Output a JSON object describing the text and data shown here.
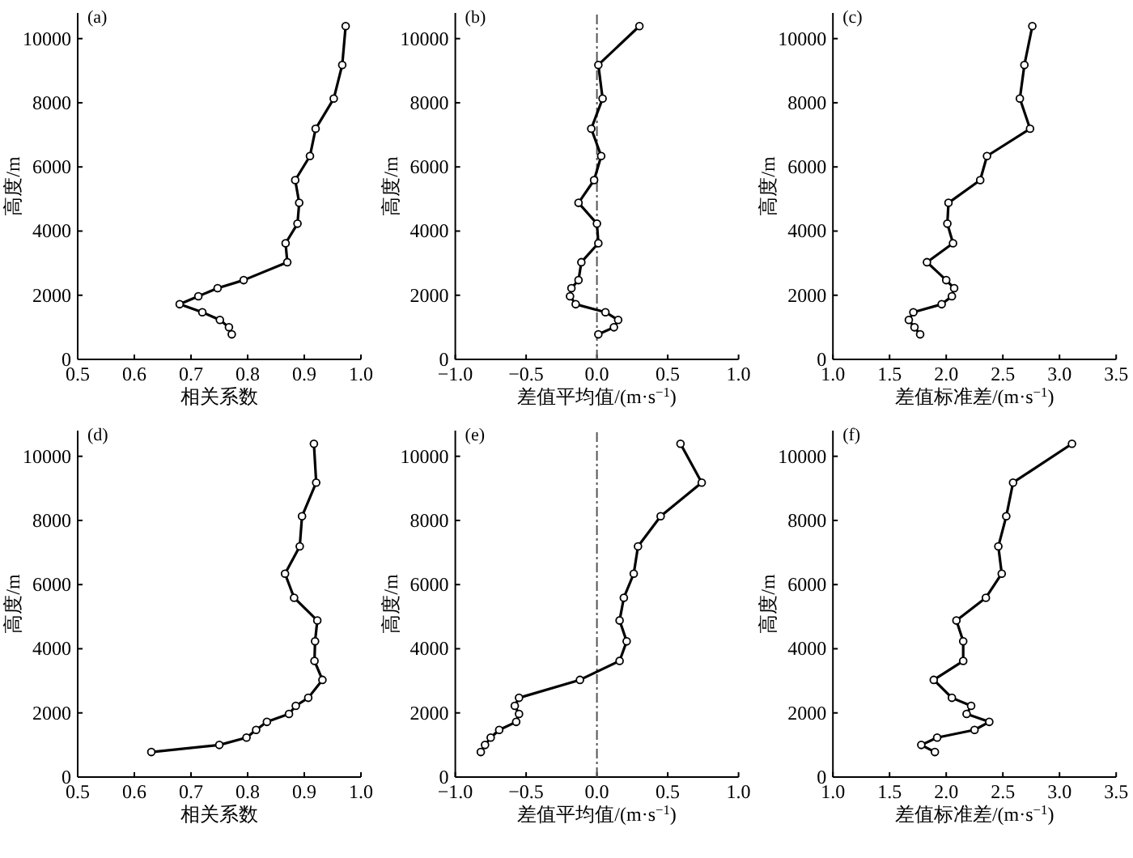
{
  "chart_data": [
    {
      "type": "line",
      "title": "(a)",
      "xlabel": "相关系数",
      "ylabel": "高度/m",
      "marker": "circle",
      "line_style": "solid",
      "xlim": [
        0.5,
        1.0
      ],
      "xticks": [
        {
          "value": 0.5,
          "label": "0.5"
        },
        {
          "value": 0.6,
          "label": "0.6"
        },
        {
          "value": 0.7,
          "label": "0.7"
        },
        {
          "value": 0.8,
          "label": "0.8"
        },
        {
          "value": 0.9,
          "label": "0.9"
        },
        {
          "value": 1.0,
          "label": "1.0"
        }
      ],
      "ylim": [
        0,
        10800
      ],
      "yticks": [
        0,
        2000,
        4000,
        6000,
        8000,
        10000
      ],
      "series": [
        {
          "color": "#000000",
          "x": [
            0.772,
            0.767,
            0.751,
            0.72,
            0.68,
            0.713,
            0.747,
            0.793,
            0.87,
            0.867,
            0.888,
            0.891,
            0.884,
            0.91,
            0.92,
            0.952,
            0.967,
            0.973
          ],
          "values": [
            780,
            1000,
            1230,
            1470,
            1720,
            1970,
            2220,
            2470,
            3030,
            3620,
            4230,
            4880,
            5590,
            6340,
            7190,
            8130,
            9180,
            10390
          ]
        }
      ]
    },
    {
      "type": "line",
      "title": "(b)",
      "xlabel": "差值平均值/(m·s$^{−1}$)",
      "ylabel": "高度/m",
      "marker": "circle",
      "line_style": "solid",
      "xlim": [
        -1.0,
        1.0
      ],
      "xticks": [
        {
          "value": -1.0,
          "label": "−1.0"
        },
        {
          "value": -0.5,
          "label": "−0.5"
        },
        {
          "value": 0.0,
          "label": "0.0"
        },
        {
          "value": 0.5,
          "label": "0.5"
        },
        {
          "value": 1.0,
          "label": "1.0"
        }
      ],
      "ylim": [
        0,
        10800
      ],
      "yticks": [
        0,
        2000,
        4000,
        6000,
        8000,
        10000
      ],
      "ref_lines": [
        {
          "axis": "x",
          "value": 0,
          "color": "#555555",
          "line_style": "dashdot"
        }
      ],
      "series": [
        {
          "color": "#000000",
          "x": [
            0.01,
            0.12,
            0.15,
            0.06,
            -0.15,
            -0.19,
            -0.18,
            -0.13,
            -0.11,
            0.01,
            0.0,
            -0.13,
            -0.02,
            0.03,
            -0.04,
            0.04,
            0.01,
            0.3
          ],
          "values": [
            780,
            1000,
            1230,
            1470,
            1720,
            1970,
            2220,
            2470,
            3030,
            3620,
            4230,
            4880,
            5590,
            6340,
            7190,
            8130,
            9180,
            10390
          ]
        }
      ]
    },
    {
      "type": "line",
      "title": "(c)",
      "xlabel": "差值标准差/(m·s$^{−1}$)",
      "ylabel": "高度/m",
      "marker": "circle",
      "line_style": "solid",
      "xlim": [
        1.0,
        3.5
      ],
      "xticks": [
        {
          "value": 1.0,
          "label": "1.0"
        },
        {
          "value": 1.5,
          "label": "1.5"
        },
        {
          "value": 2.0,
          "label": "2.0"
        },
        {
          "value": 2.5,
          "label": "2.5"
        },
        {
          "value": 3.0,
          "label": "3.0"
        },
        {
          "value": 3.5,
          "label": "3.5"
        }
      ],
      "ylim": [
        0,
        10800
      ],
      "yticks": [
        0,
        2000,
        4000,
        6000,
        8000,
        10000
      ],
      "series": [
        {
          "color": "#000000",
          "x": [
            1.77,
            1.72,
            1.67,
            1.71,
            1.96,
            2.05,
            2.07,
            2.0,
            1.83,
            2.06,
            2.01,
            2.02,
            2.3,
            2.36,
            2.74,
            2.65,
            2.69,
            2.76
          ],
          "values": [
            780,
            1000,
            1230,
            1470,
            1720,
            1970,
            2220,
            2470,
            3030,
            3620,
            4230,
            4880,
            5590,
            6340,
            7190,
            8130,
            9180,
            10390
          ]
        }
      ]
    },
    {
      "type": "line",
      "title": "(d)",
      "xlabel": "相关系数",
      "ylabel": "高度/m",
      "marker": "circle",
      "line_style": "solid",
      "xlim": [
        0.5,
        1.0
      ],
      "xticks": [
        {
          "value": 0.5,
          "label": "0.5"
        },
        {
          "value": 0.6,
          "label": "0.6"
        },
        {
          "value": 0.7,
          "label": "0.7"
        },
        {
          "value": 0.8,
          "label": "0.8"
        },
        {
          "value": 0.9,
          "label": "0.9"
        },
        {
          "value": 1.0,
          "label": "1.0"
        }
      ],
      "ylim": [
        0,
        10800
      ],
      "yticks": [
        0,
        2000,
        4000,
        6000,
        8000,
        10000
      ],
      "series": [
        {
          "color": "#000000",
          "x": [
            0.63,
            0.75,
            0.798,
            0.815,
            0.834,
            0.873,
            0.885,
            0.907,
            0.932,
            0.918,
            0.919,
            0.923,
            0.882,
            0.866,
            0.892,
            0.896,
            0.921,
            0.917
          ],
          "values": [
            780,
            1000,
            1230,
            1470,
            1720,
            1970,
            2220,
            2470,
            3030,
            3620,
            4230,
            4880,
            5590,
            6340,
            7190,
            8130,
            9180,
            10390
          ]
        }
      ]
    },
    {
      "type": "line",
      "title": "(e)",
      "xlabel": "差值平均值/(m·s$^{−1}$)",
      "ylabel": "高度/m",
      "marker": "circle",
      "line_style": "solid",
      "xlim": [
        -1.0,
        1.0
      ],
      "xticks": [
        {
          "value": -1.0,
          "label": "−1.0"
        },
        {
          "value": -0.5,
          "label": "−0.5"
        },
        {
          "value": 0.0,
          "label": "0.0"
        },
        {
          "value": 0.5,
          "label": "0.5"
        },
        {
          "value": 1.0,
          "label": "1.0"
        }
      ],
      "ylim": [
        0,
        10800
      ],
      "yticks": [
        0,
        2000,
        4000,
        6000,
        8000,
        10000
      ],
      "ref_lines": [
        {
          "axis": "x",
          "value": 0,
          "color": "#555555",
          "line_style": "dashdot"
        }
      ],
      "series": [
        {
          "color": "#000000",
          "x": [
            -0.82,
            -0.79,
            -0.75,
            -0.69,
            -0.57,
            -0.55,
            -0.58,
            -0.55,
            -0.12,
            0.16,
            0.21,
            0.16,
            0.19,
            0.26,
            0.29,
            0.45,
            0.74,
            0.59
          ],
          "values": [
            780,
            1000,
            1230,
            1470,
            1720,
            1970,
            2220,
            2470,
            3030,
            3620,
            4230,
            4880,
            5590,
            6340,
            7190,
            8130,
            9180,
            10390
          ]
        }
      ]
    },
    {
      "type": "line",
      "title": "(f)",
      "xlabel": "差值标准差/(m·s$^{−1}$)",
      "ylabel": "高度/m",
      "marker": "circle",
      "line_style": "solid",
      "xlim": [
        1.0,
        3.5
      ],
      "xticks": [
        {
          "value": 1.0,
          "label": "1.0"
        },
        {
          "value": 1.5,
          "label": "1.5"
        },
        {
          "value": 2.0,
          "label": "2.0"
        },
        {
          "value": 2.5,
          "label": "2.5"
        },
        {
          "value": 3.0,
          "label": "3.0"
        },
        {
          "value": 3.5,
          "label": "3.5"
        }
      ],
      "ylim": [
        0,
        10800
      ],
      "yticks": [
        0,
        2000,
        4000,
        6000,
        8000,
        10000
      ],
      "series": [
        {
          "color": "#000000",
          "x": [
            1.9,
            1.78,
            1.92,
            2.25,
            2.38,
            2.18,
            2.22,
            2.05,
            1.89,
            2.15,
            2.15,
            2.09,
            2.35,
            2.49,
            2.46,
            2.53,
            2.59,
            3.11
          ],
          "values": [
            780,
            1000,
            1230,
            1470,
            1720,
            1970,
            2220,
            2470,
            3030,
            3620,
            4230,
            4880,
            5590,
            6340,
            7190,
            8130,
            9180,
            10390
          ]
        }
      ]
    }
  ]
}
